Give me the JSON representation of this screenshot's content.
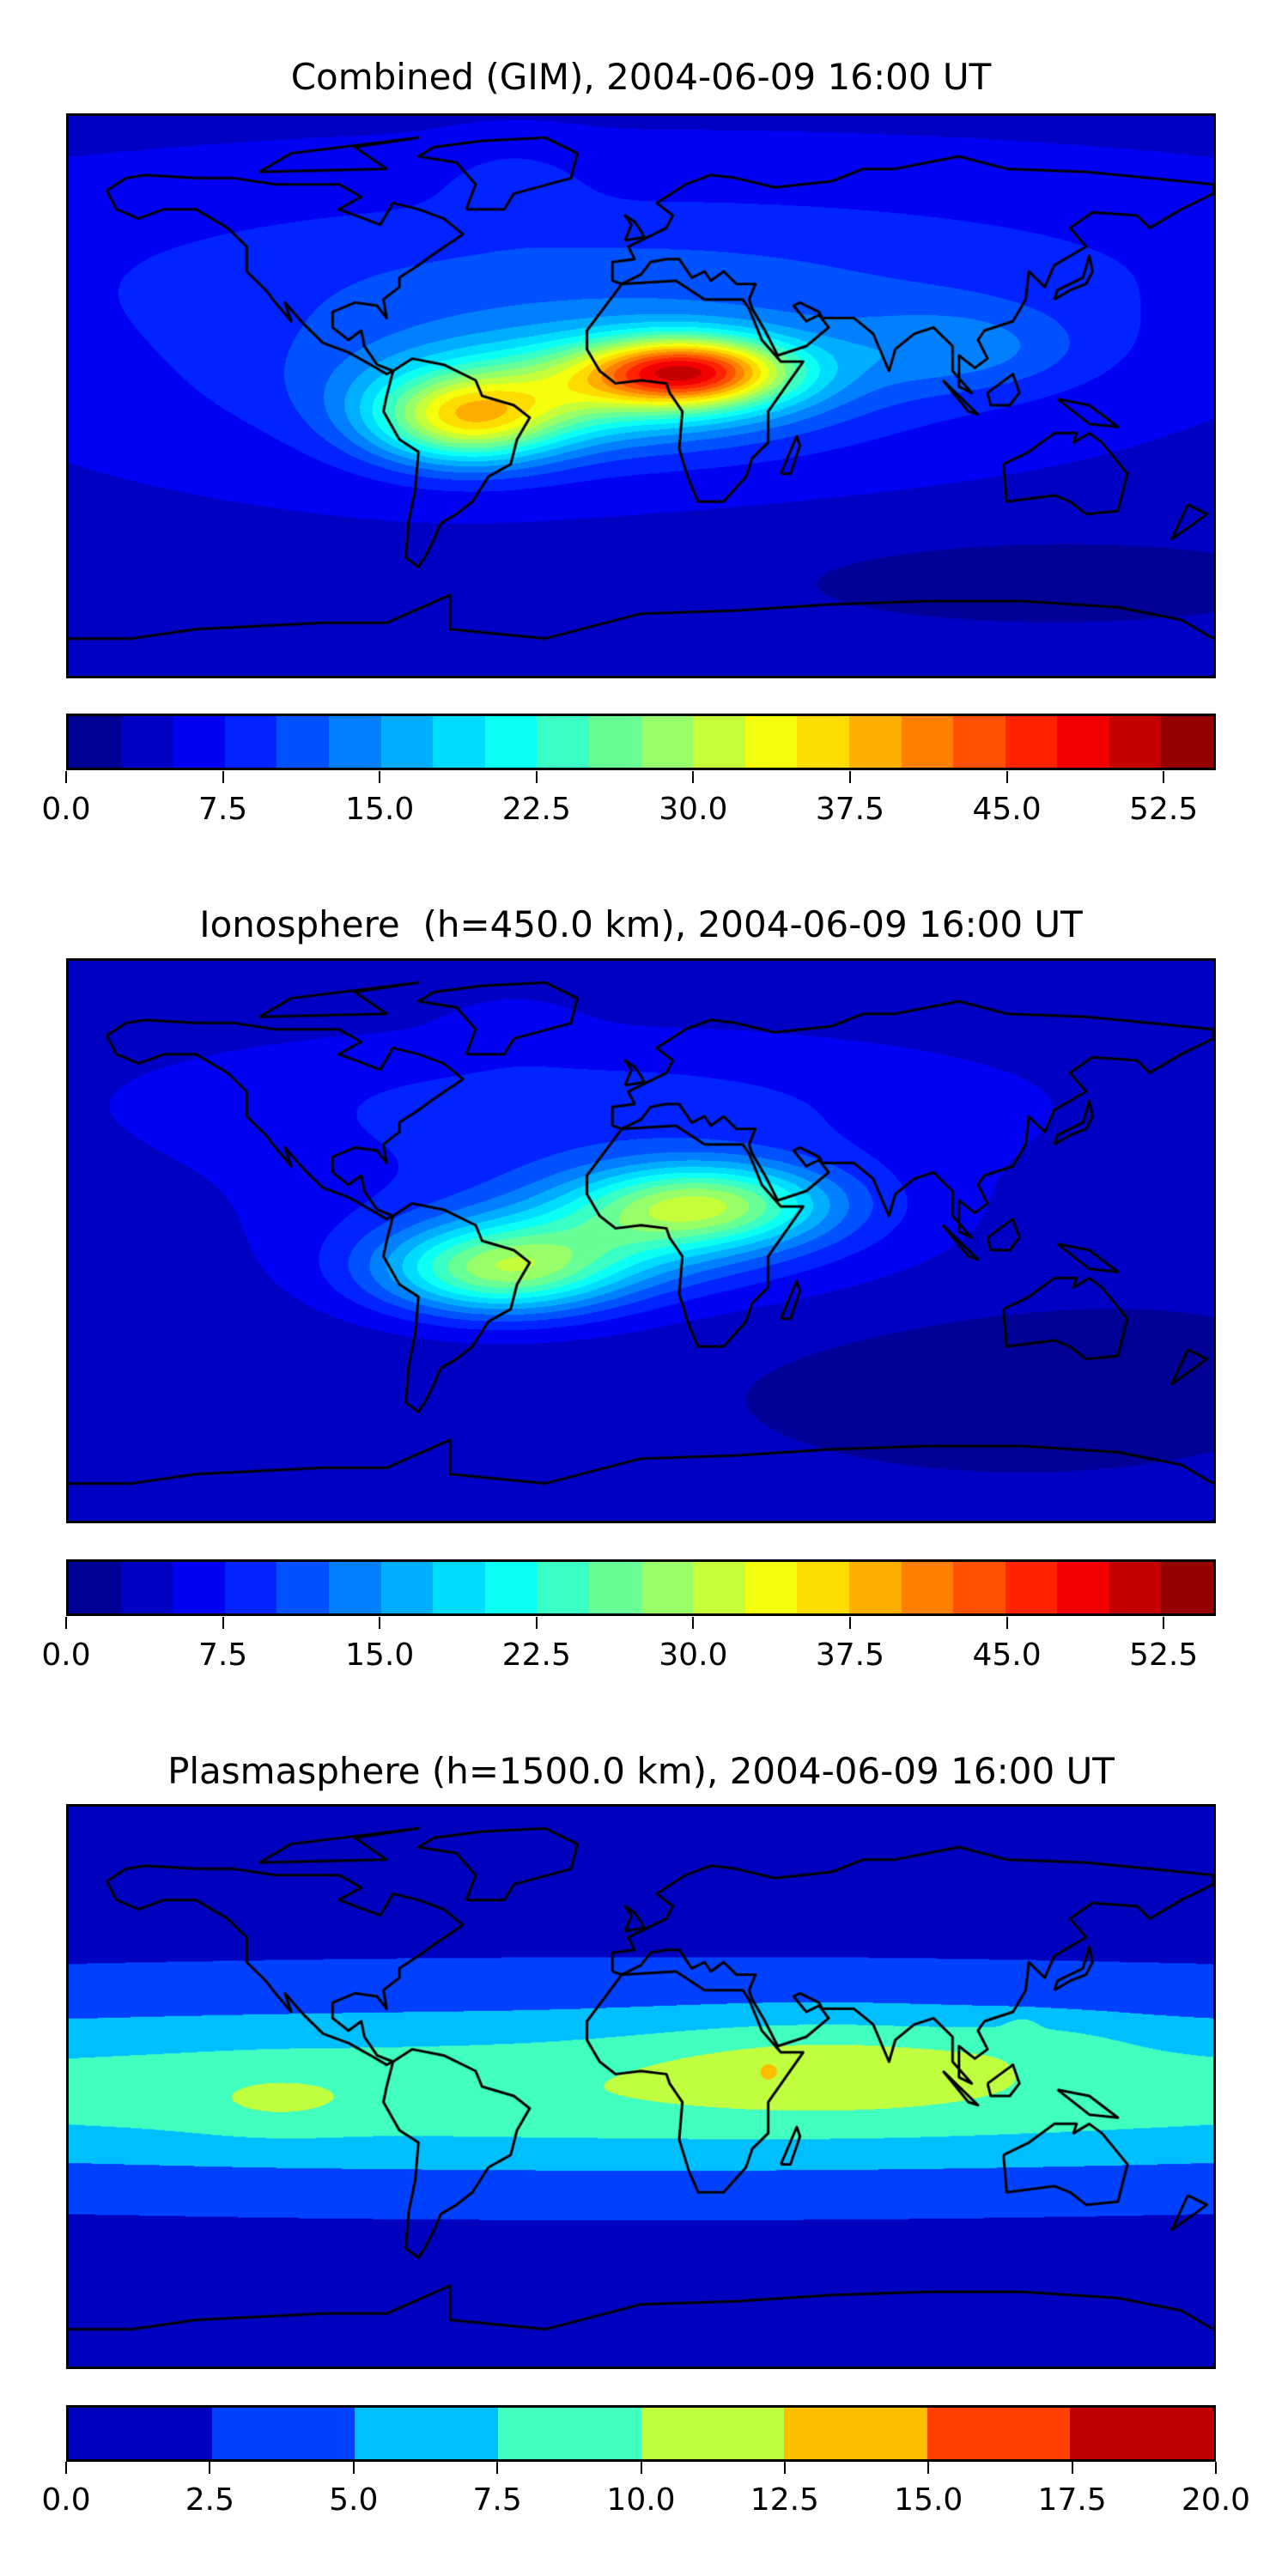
{
  "chart_data": [
    {
      "type": "heatmap",
      "title": "Combined (GIM), 2004-06-09 16:00 UT",
      "projection": "plate-carree global map with coastlines",
      "colormap": "jet",
      "levels": {
        "min": 0.0,
        "max": 55.0,
        "step": 2.5
      },
      "colorbar_ticks": [
        "0.0",
        "7.5",
        "15.0",
        "22.5",
        "30.0",
        "37.5",
        "45.0",
        "52.5"
      ],
      "colorbar_tick_values": [
        0,
        7.5,
        15,
        22.5,
        30,
        37.5,
        45,
        52.5
      ],
      "features": [
        {
          "desc": "background",
          "value": 5
        },
        {
          "lon": 15,
          "lat": 8,
          "value": 46,
          "region": "West/Central Africa peak"
        },
        {
          "lon": -55,
          "lat": -8,
          "value": 35,
          "region": "South America"
        }
      ]
    },
    {
      "type": "heatmap",
      "title": "Ionosphere  (h=450.0 km), 2004-06-09 16:00 UT",
      "projection": "plate-carree global map with coastlines",
      "colormap": "jet",
      "levels": {
        "min": 0.0,
        "max": 55.0,
        "step": 2.5
      },
      "colorbar_ticks": [
        "0.0",
        "7.5",
        "15.0",
        "22.5",
        "30.0",
        "37.5",
        "45.0",
        "52.5"
      ],
      "colorbar_tick_values": [
        0,
        7.5,
        15,
        22.5,
        30,
        37.5,
        45,
        52.5
      ],
      "features": [
        {
          "desc": "background",
          "value": 3
        },
        {
          "lon": 20,
          "lat": 12,
          "value": 33,
          "region": "North Africa"
        },
        {
          "lon": -45,
          "lat": -10,
          "value": 31,
          "region": "South America / Atlantic"
        }
      ]
    },
    {
      "type": "heatmap",
      "title": "Plasmasphere (h=1500.0 km), 2004-06-09 16:00 UT",
      "projection": "plate-carree global map with coastlines",
      "colormap": "jet",
      "levels": {
        "min": 0.0,
        "max": 20.0,
        "step": 2.5
      },
      "colorbar_ticks": [
        "0.0",
        "2.5",
        "5.0",
        "7.5",
        "10.0",
        "12.5",
        "15.0",
        "17.5",
        "20.0"
      ],
      "colorbar_tick_values": [
        0,
        2.5,
        5,
        7.5,
        10,
        12.5,
        15,
        17.5,
        20
      ],
      "features": [
        {
          "desc": "background",
          "value": 2
        },
        {
          "lon": 60,
          "lat": 5,
          "value": 11.5,
          "region": "Africa to SE Asia low latitudes"
        },
        {
          "lon": -110,
          "lat": -5,
          "value": 9,
          "region": "Pacific low latitudes"
        }
      ]
    }
  ]
}
